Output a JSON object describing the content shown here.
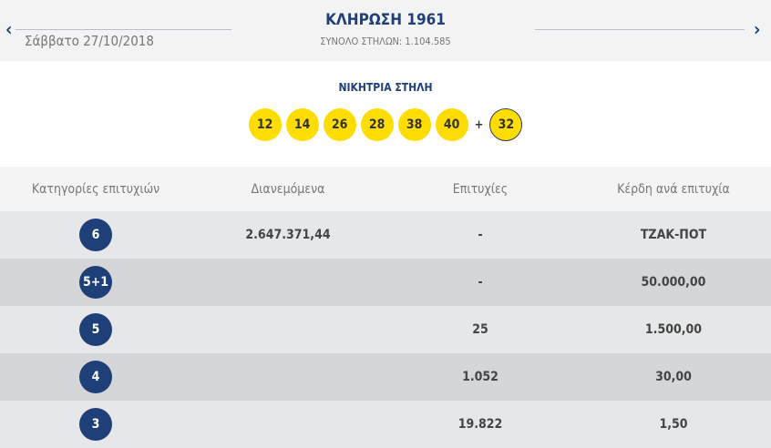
{
  "header": {
    "title": "ΚΛΗΡΩΣΗ 1961",
    "date": "Σάββατο 27/10/2018",
    "total_columns": "ΣΥΝΟΛΟ ΣΤΗΛΩΝ: 1.104.585",
    "prev_icon": "chevron-left-icon",
    "next_icon": "chevron-right-icon",
    "prev": "‹",
    "next": "›"
  },
  "winning": {
    "label": "ΝΙΚΗΤΡΙΑ ΣΤΗΛΗ",
    "numbers": [
      "12",
      "14",
      "26",
      "28",
      "38",
      "40"
    ],
    "plus": "+",
    "bonus": "32"
  },
  "table": {
    "headers": [
      "Κατηγορίες επιτυχιών",
      "Διανεμόμενα",
      "Επιτυχίες",
      "Κέρδη ανά επιτυχία"
    ],
    "rows": [
      {
        "category": "6",
        "distributed": "2.647.371,44",
        "winners": "-",
        "prize": "ΤΖΑΚ-ΠΟΤ"
      },
      {
        "category": "5+1",
        "distributed": "",
        "winners": "-",
        "prize": "50.000,00"
      },
      {
        "category": "5",
        "distributed": "",
        "winners": "25",
        "prize": "1.500,00"
      },
      {
        "category": "4",
        "distributed": "",
        "winners": "1.052",
        "prize": "30,00"
      },
      {
        "category": "3",
        "distributed": "",
        "winners": "19.822",
        "prize": "1,50"
      }
    ]
  },
  "colors": {
    "brand": "#1e3f78",
    "ball": "#ffdd00"
  }
}
